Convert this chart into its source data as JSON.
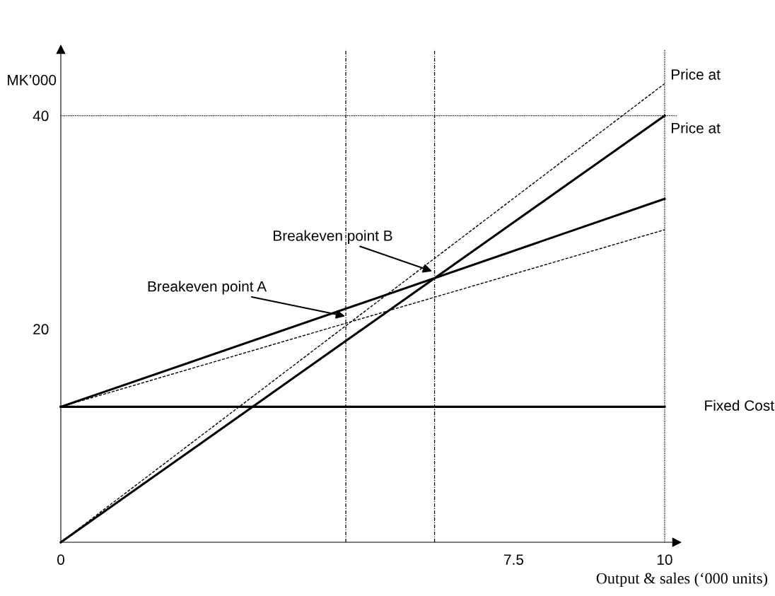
{
  "chart_data": {
    "type": "line",
    "ylabel": "MK’000",
    "xlabel": "Output & sales (‘000 units)",
    "xlim": [
      0,
      10.2
    ],
    "ylim": [
      0,
      46.2
    ],
    "xticks": [
      0,
      7.5,
      10
    ],
    "yticks": [
      20,
      40
    ],
    "grid": false,
    "legend": false,
    "marker": "none",
    "x": [
      0,
      10
    ],
    "series": [
      {
        "name": "Price at",
        "color": "#000000",
        "line_style": "dashed",
        "values": [
          0,
          43.0
        ]
      },
      {
        "name": "Price at",
        "color": "#000000",
        "line_style": "solid",
        "values": [
          0,
          40
        ]
      },
      {
        "color": "#000000",
        "line_style": "solid",
        "values": [
          12.7,
          32.2
        ]
      },
      {
        "color": "#000000",
        "line_style": "dashed",
        "values": [
          12.7,
          29.3
        ]
      },
      {
        "name": "Fixed Cost",
        "color": "#000000",
        "line_style": "solid",
        "values": [
          12.7,
          12.7
        ]
      }
    ],
    "ref_lines": [
      {
        "axis": "y",
        "value": 40,
        "line_style": "dotted",
        "color": "#000000"
      },
      {
        "axis": "x",
        "value": 4.72,
        "line_style": "dashdot",
        "color": "#000000"
      },
      {
        "axis": "x",
        "value": 6.19,
        "line_style": "dashdot",
        "color": "#000000"
      },
      {
        "axis": "x",
        "value": 10,
        "line_style": "dotted",
        "color": "#000000"
      }
    ],
    "annotations": [
      {
        "text": "Breakeven point B",
        "x": 6.15,
        "y": 25.4
      },
      {
        "text": "Breakeven point A",
        "x": 4.71,
        "y": 21.2
      }
    ]
  }
}
